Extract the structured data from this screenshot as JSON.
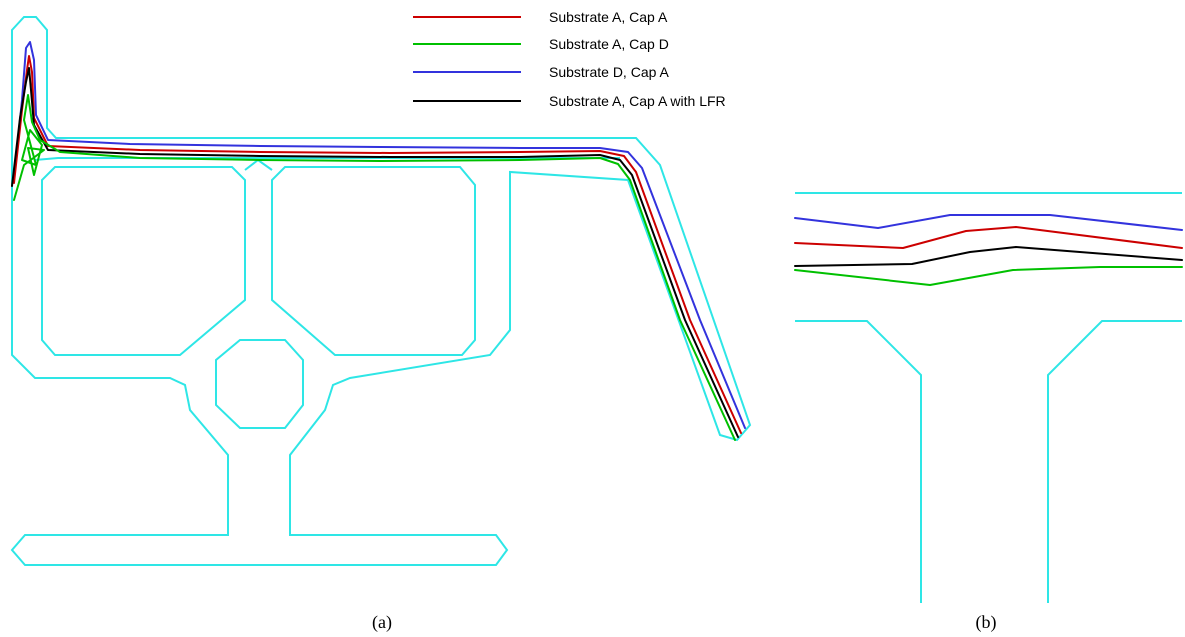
{
  "legend": [
    {
      "label": "Substrate A, Cap A",
      "color": "#cc0000"
    },
    {
      "label": "Substrate A, Cap D",
      "color": "#00c000"
    },
    {
      "label": "Substrate D, Cap A",
      "color": "#3333dd"
    },
    {
      "label": "Substrate A, Cap A with LFR",
      "color": "#000000"
    }
  ],
  "captions": {
    "a": "(a)",
    "b": "(b)"
  },
  "colors": {
    "outline": "#2ee6e6"
  }
}
